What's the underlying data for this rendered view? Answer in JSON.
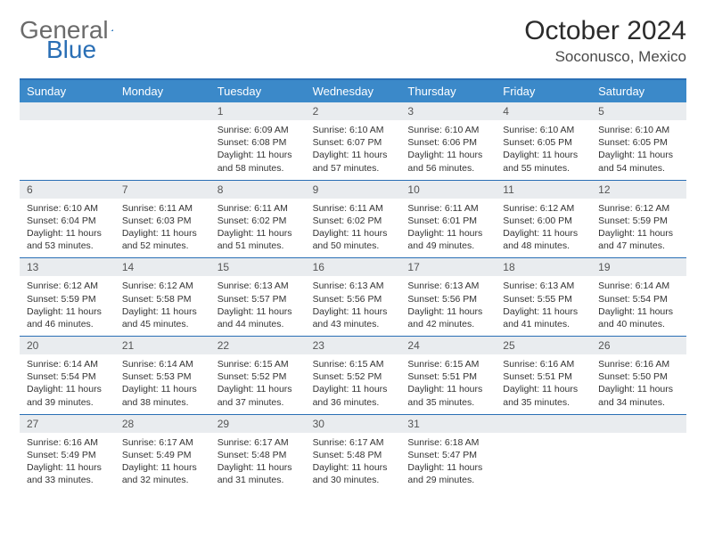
{
  "logo": {
    "word1": "General",
    "word2": "Blue"
  },
  "title": "October 2024",
  "location": "Soconusco, Mexico",
  "colors": {
    "header_bar": "#3b89c9",
    "accent_line": "#2a6fb5",
    "daynum_bg": "#e9ecef",
    "text": "#333333",
    "logo_gray": "#6b6b6b"
  },
  "dayNames": [
    "Sunday",
    "Monday",
    "Tuesday",
    "Wednesday",
    "Thursday",
    "Friday",
    "Saturday"
  ],
  "weeks": [
    [
      null,
      null,
      {
        "n": "1",
        "sr": "6:09 AM",
        "ss": "6:08 PM",
        "dl": "11 hours and 58 minutes."
      },
      {
        "n": "2",
        "sr": "6:10 AM",
        "ss": "6:07 PM",
        "dl": "11 hours and 57 minutes."
      },
      {
        "n": "3",
        "sr": "6:10 AM",
        "ss": "6:06 PM",
        "dl": "11 hours and 56 minutes."
      },
      {
        "n": "4",
        "sr": "6:10 AM",
        "ss": "6:05 PM",
        "dl": "11 hours and 55 minutes."
      },
      {
        "n": "5",
        "sr": "6:10 AM",
        "ss": "6:05 PM",
        "dl": "11 hours and 54 minutes."
      }
    ],
    [
      {
        "n": "6",
        "sr": "6:10 AM",
        "ss": "6:04 PM",
        "dl": "11 hours and 53 minutes."
      },
      {
        "n": "7",
        "sr": "6:11 AM",
        "ss": "6:03 PM",
        "dl": "11 hours and 52 minutes."
      },
      {
        "n": "8",
        "sr": "6:11 AM",
        "ss": "6:02 PM",
        "dl": "11 hours and 51 minutes."
      },
      {
        "n": "9",
        "sr": "6:11 AM",
        "ss": "6:02 PM",
        "dl": "11 hours and 50 minutes."
      },
      {
        "n": "10",
        "sr": "6:11 AM",
        "ss": "6:01 PM",
        "dl": "11 hours and 49 minutes."
      },
      {
        "n": "11",
        "sr": "6:12 AM",
        "ss": "6:00 PM",
        "dl": "11 hours and 48 minutes."
      },
      {
        "n": "12",
        "sr": "6:12 AM",
        "ss": "5:59 PM",
        "dl": "11 hours and 47 minutes."
      }
    ],
    [
      {
        "n": "13",
        "sr": "6:12 AM",
        "ss": "5:59 PM",
        "dl": "11 hours and 46 minutes."
      },
      {
        "n": "14",
        "sr": "6:12 AM",
        "ss": "5:58 PM",
        "dl": "11 hours and 45 minutes."
      },
      {
        "n": "15",
        "sr": "6:13 AM",
        "ss": "5:57 PM",
        "dl": "11 hours and 44 minutes."
      },
      {
        "n": "16",
        "sr": "6:13 AM",
        "ss": "5:56 PM",
        "dl": "11 hours and 43 minutes."
      },
      {
        "n": "17",
        "sr": "6:13 AM",
        "ss": "5:56 PM",
        "dl": "11 hours and 42 minutes."
      },
      {
        "n": "18",
        "sr": "6:13 AM",
        "ss": "5:55 PM",
        "dl": "11 hours and 41 minutes."
      },
      {
        "n": "19",
        "sr": "6:14 AM",
        "ss": "5:54 PM",
        "dl": "11 hours and 40 minutes."
      }
    ],
    [
      {
        "n": "20",
        "sr": "6:14 AM",
        "ss": "5:54 PM",
        "dl": "11 hours and 39 minutes."
      },
      {
        "n": "21",
        "sr": "6:14 AM",
        "ss": "5:53 PM",
        "dl": "11 hours and 38 minutes."
      },
      {
        "n": "22",
        "sr": "6:15 AM",
        "ss": "5:52 PM",
        "dl": "11 hours and 37 minutes."
      },
      {
        "n": "23",
        "sr": "6:15 AM",
        "ss": "5:52 PM",
        "dl": "11 hours and 36 minutes."
      },
      {
        "n": "24",
        "sr": "6:15 AM",
        "ss": "5:51 PM",
        "dl": "11 hours and 35 minutes."
      },
      {
        "n": "25",
        "sr": "6:16 AM",
        "ss": "5:51 PM",
        "dl": "11 hours and 35 minutes."
      },
      {
        "n": "26",
        "sr": "6:16 AM",
        "ss": "5:50 PM",
        "dl": "11 hours and 34 minutes."
      }
    ],
    [
      {
        "n": "27",
        "sr": "6:16 AM",
        "ss": "5:49 PM",
        "dl": "11 hours and 33 minutes."
      },
      {
        "n": "28",
        "sr": "6:17 AM",
        "ss": "5:49 PM",
        "dl": "11 hours and 32 minutes."
      },
      {
        "n": "29",
        "sr": "6:17 AM",
        "ss": "5:48 PM",
        "dl": "11 hours and 31 minutes."
      },
      {
        "n": "30",
        "sr": "6:17 AM",
        "ss": "5:48 PM",
        "dl": "11 hours and 30 minutes."
      },
      {
        "n": "31",
        "sr": "6:18 AM",
        "ss": "5:47 PM",
        "dl": "11 hours and 29 minutes."
      },
      null,
      null
    ]
  ],
  "labels": {
    "sunrise": "Sunrise:",
    "sunset": "Sunset:",
    "daylight": "Daylight:"
  }
}
